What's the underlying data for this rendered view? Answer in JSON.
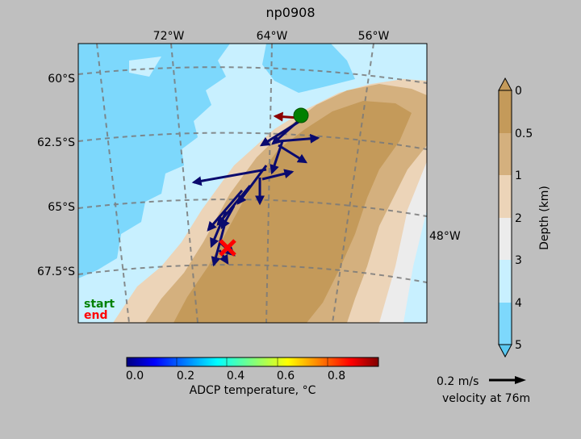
{
  "chart_data": {
    "type": "map",
    "title": "np0908",
    "longitude_ticks": [
      "72°W",
      "64°W",
      "56°W",
      "48°W"
    ],
    "latitude_ticks": [
      "60°S",
      "62.5°S",
      "65°S",
      "67.5°S"
    ],
    "legend": {
      "start_label": "start",
      "end_label": "end",
      "start_color": "#008000",
      "end_color": "#ff0000"
    },
    "depth_colorbar": {
      "label": "Depth (km)",
      "ticks": [
        "0",
        "0.5",
        "1",
        "2",
        "3",
        "4",
        "5"
      ],
      "colors": [
        "#c49a5a",
        "#d4b07e",
        "#ecd4b8",
        "#ececec",
        "#c8f0ff",
        "#7dd8fc"
      ]
    },
    "temperature_colorbar": {
      "label": "ADCP temperature, °C",
      "range": [
        0.0,
        1.0
      ],
      "ticks": [
        "0.0",
        "0.2",
        "0.4",
        "0.6",
        "0.8"
      ]
    },
    "velocity_key": {
      "speed_label": "0.2 m/s",
      "depth_label": "velocity at 76m"
    }
  }
}
